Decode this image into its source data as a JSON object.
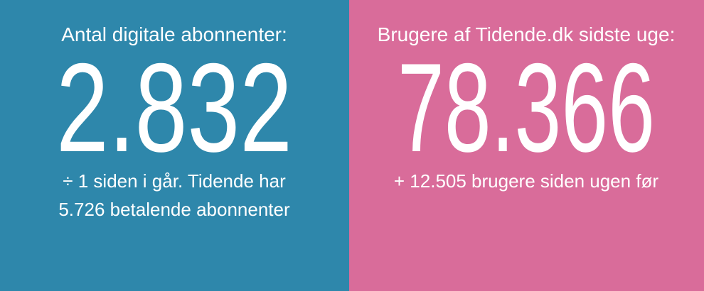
{
  "panels": [
    {
      "title": "Antal digitale abonnenter:",
      "number": "2.832",
      "lines": [
        "÷ 1 siden i går. Tidende har",
        "5.726 betalende abonnenter"
      ]
    },
    {
      "title": "Brugere af Tidende.dk sidste uge:",
      "number": "78.366",
      "lines": [
        "+ 12.505 brugere siden ugen før"
      ]
    }
  ]
}
